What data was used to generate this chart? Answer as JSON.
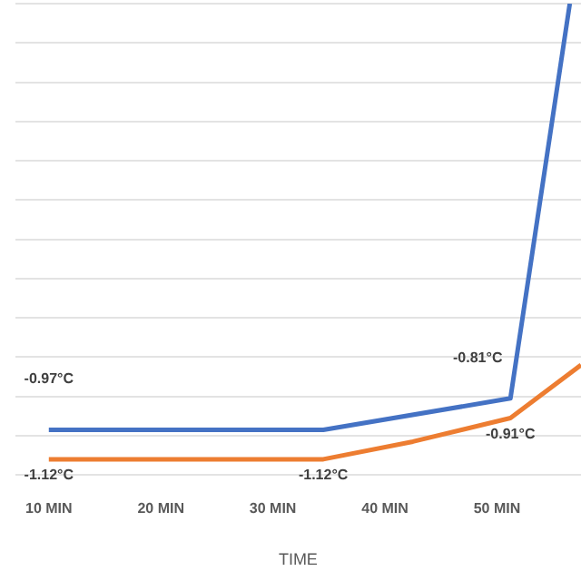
{
  "chart_data": {
    "type": "line",
    "xlabel": "TIME",
    "xlim": [
      7,
      57.5
    ],
    "xticks": [
      {
        "value": 10,
        "label": "10 MIN"
      },
      {
        "value": 20,
        "label": "20 MIN"
      },
      {
        "value": 30,
        "label": "30 MIN"
      },
      {
        "value": 40,
        "label": "40 MIN"
      },
      {
        "value": 50,
        "label": "50 MIN"
      }
    ],
    "ylim": [
      -1.2,
      1.2
    ],
    "yticks": [
      {
        "value": -1.2,
        "label": null
      },
      {
        "value": -1,
        "label": null
      },
      {
        "value": -0.8,
        "label": null
      },
      {
        "value": -0.6,
        "label": null
      },
      {
        "value": -0.4,
        "label": null
      },
      {
        "value": -0.2,
        "label": null
      },
      {
        "value": 0,
        "label": null
      },
      {
        "value": 0.2,
        "label": null
      },
      {
        "value": 0.4,
        "label": null
      },
      {
        "value": 0.6,
        "label": null
      },
      {
        "value": 0.8,
        "label": null
      },
      {
        "value": 1,
        "label": null
      },
      {
        "value": 1.2,
        "label": null
      }
    ],
    "tick_labels": "x",
    "grid": "y",
    "legend": false,
    "marker": "none",
    "series": [
      {
        "color": "#4472c4",
        "x": [
          10,
          34.5,
          51.2,
          56.5
        ],
        "values": [
          -0.97,
          -0.97,
          -0.81,
          1.2
        ],
        "value_labels": [
          "-0.97°C",
          null,
          "-0.81°C",
          null
        ]
      },
      {
        "color": "#ed7d31",
        "x": [
          10,
          34.5,
          42.5,
          51.2,
          57.5
        ],
        "values": [
          -1.12,
          -1.12,
          -1.03,
          -0.91,
          -0.64
        ],
        "value_labels": [
          "-1.12°C",
          "-1.12°C",
          null,
          "-0.91°C",
          null
        ]
      }
    ]
  }
}
